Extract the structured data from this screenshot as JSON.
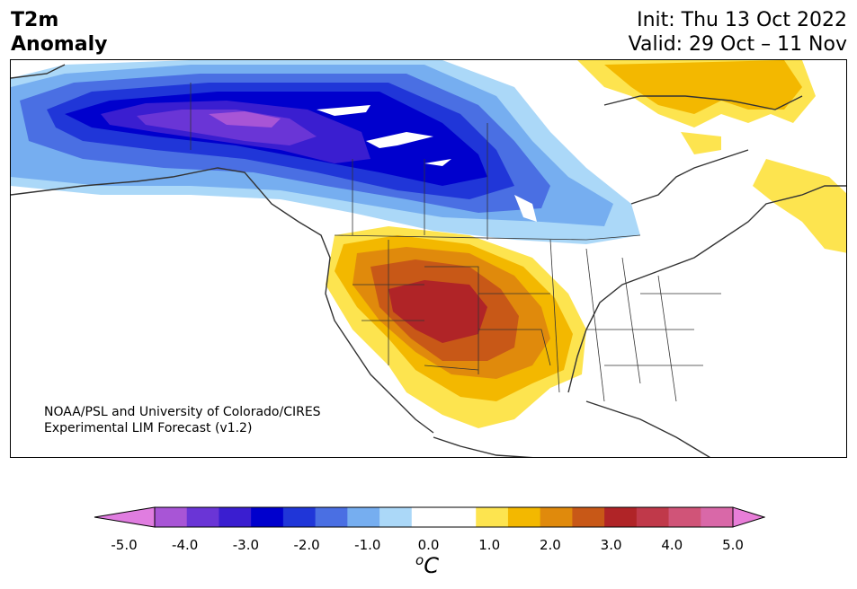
{
  "header": {
    "title_line1": "T2m",
    "title_line2": "Anomaly",
    "init": "Init: Thu 13 Oct 2022",
    "valid": "Valid: 29 Oct – 11 Nov"
  },
  "credit": {
    "line1": "NOAA/PSL and University of Colorado/CIRES",
    "line2": "Experimental LIM Forecast (v1.2)"
  },
  "colorbar": {
    "ticks": [
      "-5.0",
      "-4.0",
      "-3.0",
      "-2.0",
      "-1.0",
      "0.0",
      "1.0",
      "2.0",
      "3.0",
      "4.0",
      "5.0"
    ],
    "unit_base": "C",
    "unit_sup": "o",
    "colors": [
      "#e07de0",
      "#a855d6",
      "#6a35d6",
      "#3a1ed0",
      "#0000cd",
      "#2036d8",
      "#4a6fe3",
      "#76aef0",
      "#abd8f8",
      "#ffffff",
      "#ffffff",
      "#fde44f",
      "#f3b800",
      "#e08a0c",
      "#c85817",
      "#b02427",
      "#c0394a",
      "#d05478",
      "#d968a8",
      "#e87ed8"
    ],
    "under_color": "#e07de0",
    "over_color": "#e87ed8"
  },
  "map": {
    "region": "North America",
    "variable": "2 m temperature anomaly",
    "cold_anomaly": "Alaska, western/central Canada",
    "warm_anomaly": "Southwestern and south-central United States, northern Mexico, northeastern Canada"
  }
}
